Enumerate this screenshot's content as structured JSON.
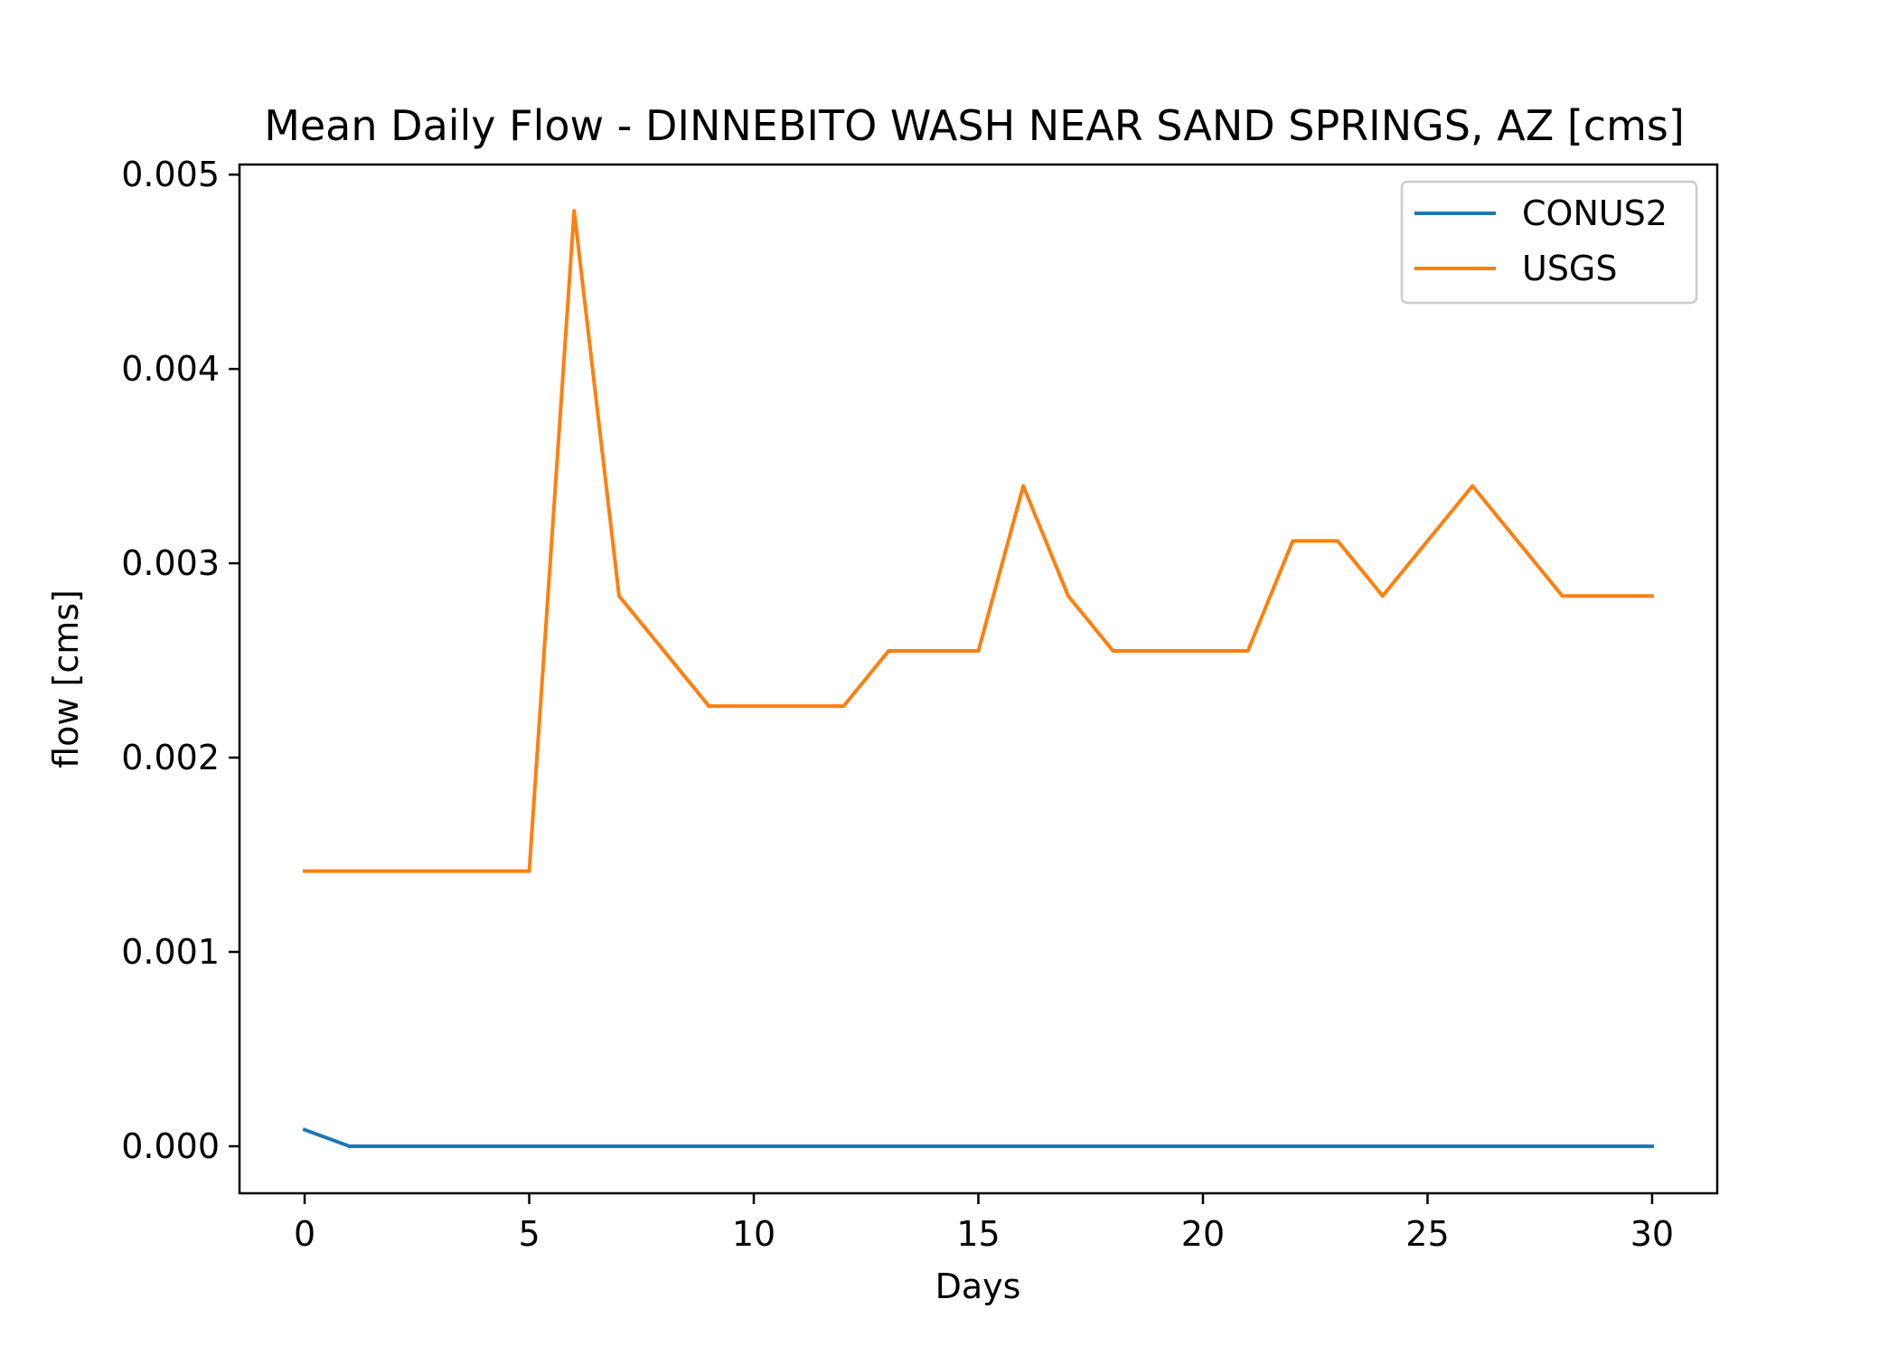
{
  "chart_data": {
    "type": "line",
    "title": "Mean Daily Flow - DINNEBITO WASH NEAR SAND SPRINGS, AZ [cms]",
    "xlabel": "Days",
    "ylabel": "flow [cms]",
    "xlim": [
      -1.45,
      31.45
    ],
    "ylim": [
      -0.000242,
      0.005052
    ],
    "x_ticks": [
      0,
      5,
      10,
      15,
      20,
      25,
      30
    ],
    "x_tick_labels": [
      "0",
      "5",
      "10",
      "15",
      "20",
      "25",
      "30"
    ],
    "y_ticks": [
      0,
      0.001,
      0.002,
      0.003,
      0.004,
      0.005
    ],
    "y_tick_labels": [
      "0.000",
      "0.001",
      "0.002",
      "0.003",
      "0.004",
      "0.005"
    ],
    "grid": false,
    "legend_position": "top-right",
    "x": [
      0,
      1,
      2,
      3,
      4,
      5,
      6,
      7,
      8,
      9,
      10,
      11,
      12,
      13,
      14,
      15,
      16,
      17,
      18,
      19,
      20,
      21,
      22,
      23,
      24,
      25,
      26,
      27,
      28,
      29,
      30
    ],
    "series": [
      {
        "name": "CONUS2",
        "color": "#1f77b4",
        "values": [
          8.5e-05,
          0.0,
          0.0,
          0.0,
          0.0,
          0.0,
          0.0,
          0.0,
          0.0,
          0.0,
          0.0,
          0.0,
          0.0,
          0.0,
          0.0,
          0.0,
          0.0,
          0.0,
          0.0,
          0.0,
          0.0,
          0.0,
          0.0,
          0.0,
          0.0,
          0.0,
          0.0,
          0.0,
          0.0,
          0.0,
          0.0
        ]
      },
      {
        "name": "USGS",
        "color": "#ff7f0e",
        "values": [
          0.001416,
          0.001416,
          0.001416,
          0.001416,
          0.001416,
          0.001416,
          0.004814,
          0.002832,
          0.002549,
          0.002265,
          0.002265,
          0.002265,
          0.002265,
          0.002549,
          0.002549,
          0.002549,
          0.003398,
          0.002832,
          0.002549,
          0.002549,
          0.002549,
          0.002549,
          0.003115,
          0.003115,
          0.002832,
          0.003115,
          0.003398,
          0.003115,
          0.002832,
          0.002832,
          0.002832
        ]
      }
    ]
  }
}
